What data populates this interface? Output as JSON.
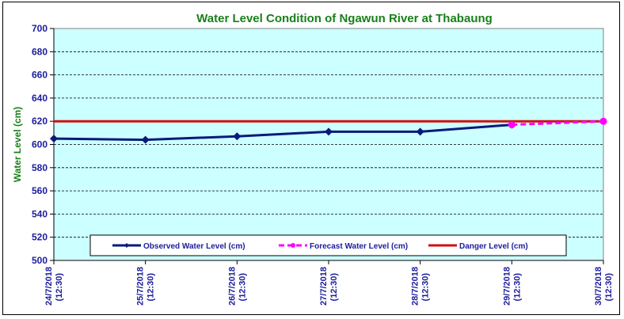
{
  "chart_data": {
    "type": "line",
    "title": "Water Level Condition of Ngawun  River at  Thabaung",
    "xlabel": "",
    "ylabel": "Water Level (cm)",
    "ylim": [
      500,
      700
    ],
    "yticks": [
      500,
      520,
      540,
      560,
      580,
      600,
      620,
      640,
      660,
      680,
      700
    ],
    "grid": true,
    "categories": [
      [
        "24/7/2018",
        "(12:30)"
      ],
      [
        "25/7/2018",
        "(12:30)"
      ],
      [
        "26/7/2018",
        "(12:30)"
      ],
      [
        "27/7/2018",
        "(12:30)"
      ],
      [
        "28/7/2018",
        "(12:30)"
      ],
      [
        "29/7/2018",
        "(12:30)"
      ],
      [
        "30/7/2018",
        "(12:30)"
      ]
    ],
    "series": [
      {
        "name": "Observed Water Level (cm)",
        "color": "#0a1a7a",
        "style": "solid-diamond",
        "values": [
          605,
          604,
          607,
          611,
          611,
          617,
          null
        ]
      },
      {
        "name": "Forecast Water Level (cm)",
        "color": "#ff00ff",
        "style": "dashed-circle",
        "values": [
          null,
          null,
          null,
          null,
          null,
          617,
          620
        ]
      },
      {
        "name": "Danger Level (cm)",
        "color": "#d01010",
        "style": "solid",
        "values": [
          620,
          620,
          620,
          620,
          620,
          620,
          620
        ]
      }
    ],
    "legend_position": "bottom-inside",
    "plot_background": "#ccffff"
  }
}
